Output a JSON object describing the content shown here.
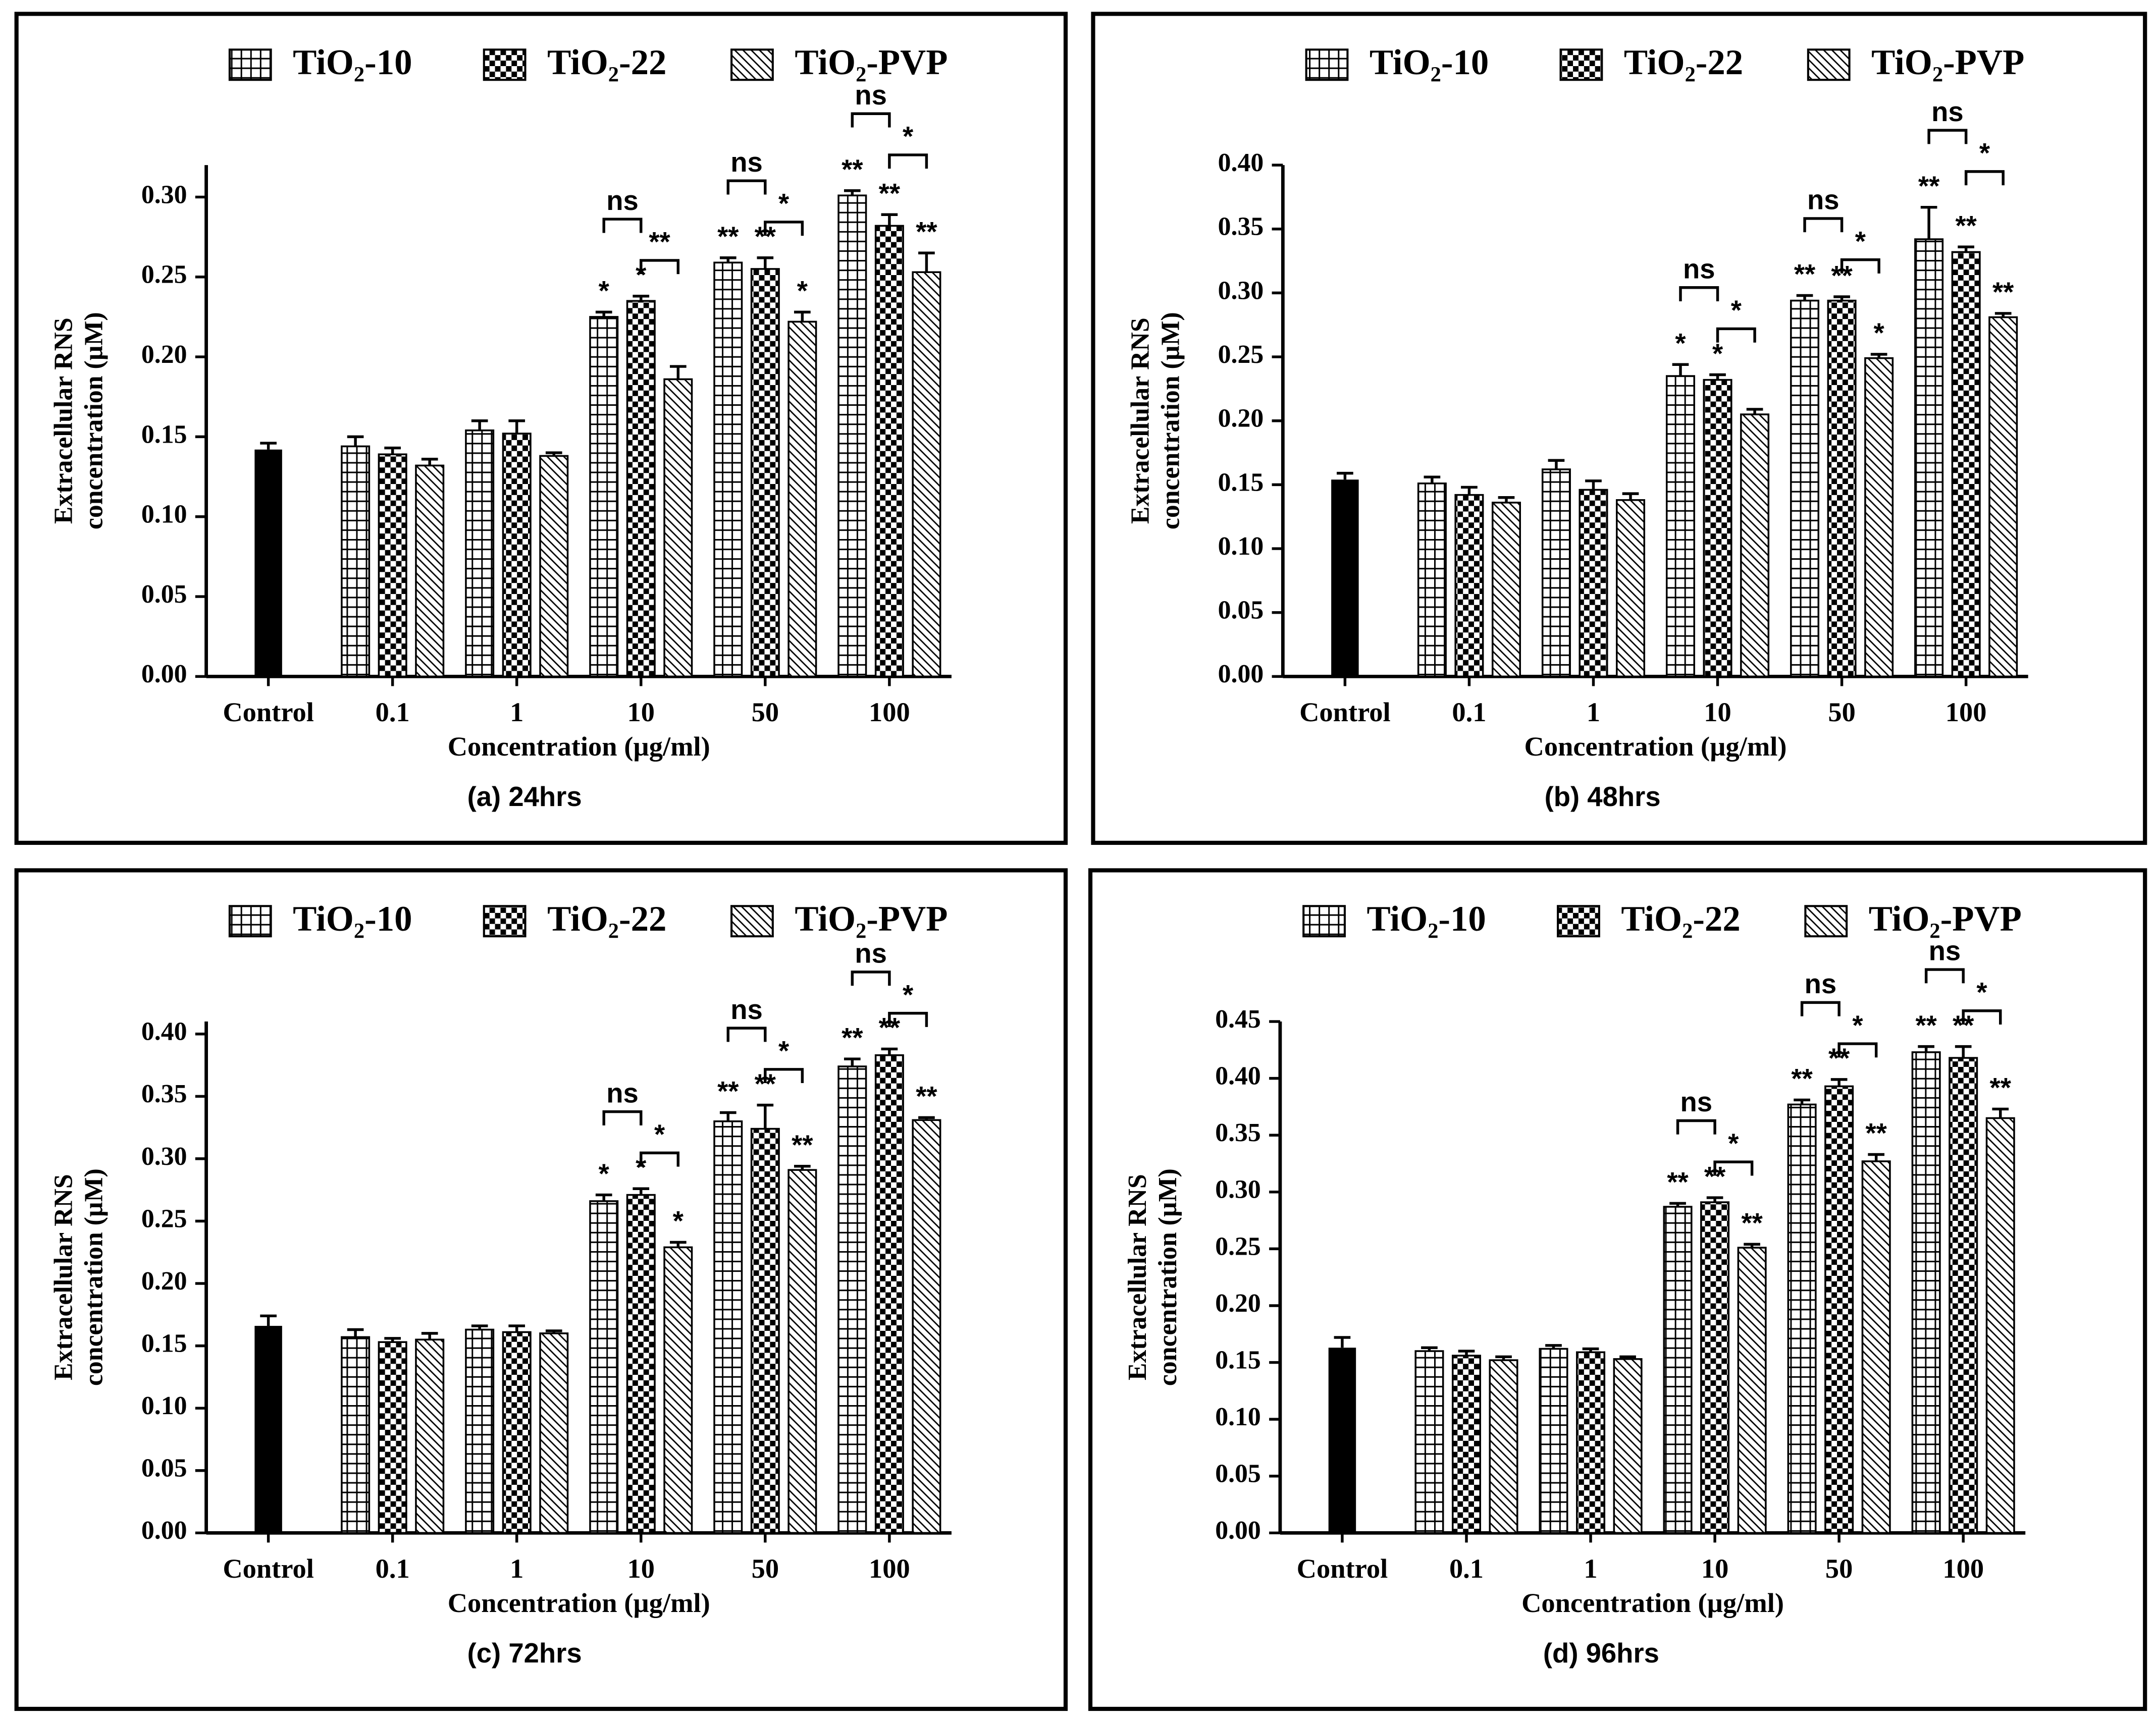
{
  "chart_data": [
    {
      "type": "bar",
      "caption": "(a) 24hrs",
      "xlabel": "Concentration (µg/ml)",
      "ylabel": [
        "Extracellular RNS",
        "concentration (µM)"
      ],
      "categories": [
        "Control",
        "0.1",
        "1",
        "10",
        "50",
        "100"
      ],
      "control": {
        "value": 0.142,
        "error": 0.004,
        "color": "#000000"
      },
      "ylim": [
        0,
        0.32
      ],
      "yticks": [
        {
          "value": 0,
          "label": "0.00"
        },
        {
          "value": 0.05,
          "label": "0.05"
        },
        {
          "value": 0.1,
          "label": "0.10"
        },
        {
          "value": 0.15,
          "label": "0.15"
        },
        {
          "value": 0.2,
          "label": "0.20"
        },
        {
          "value": 0.25,
          "label": "0.25"
        },
        {
          "value": 0.3,
          "label": "0.30"
        }
      ],
      "series": [
        {
          "name": "TiO₂-10",
          "color": "#000000",
          "pattern": "grid",
          "values": [
            null,
            0.144,
            0.154,
            0.225,
            0.259,
            0.301
          ],
          "errors": [
            null,
            0.006,
            0.006,
            0.003,
            0.003,
            0.003
          ],
          "annotations": [
            null,
            null,
            null,
            "*",
            "**",
            "**"
          ]
        },
        {
          "name": "TiO₂-22",
          "color": "#000000",
          "pattern": "checker",
          "values": [
            null,
            0.139,
            0.152,
            0.235,
            0.255,
            0.282
          ],
          "errors": [
            null,
            0.004,
            0.008,
            0.003,
            0.007,
            0.007
          ],
          "annotations": [
            null,
            null,
            null,
            "*",
            "**",
            "**"
          ]
        },
        {
          "name": "TiO₂-PVP",
          "color": "#000000",
          "pattern": "diagonal",
          "values": [
            null,
            0.132,
            0.138,
            0.186,
            0.222,
            0.253
          ],
          "errors": [
            null,
            0.004,
            0.002,
            0.008,
            0.006,
            0.012
          ],
          "annotations": [
            null,
            null,
            null,
            null,
            "*",
            "**"
          ]
        }
      ],
      "brackets": [
        {
          "category": "10",
          "pair": [
            "TiO₂-10",
            "TiO₂-22"
          ],
          "label": "ns"
        },
        {
          "category": "10",
          "pair": [
            "TiO₂-22",
            "TiO₂-PVP"
          ],
          "label": "**"
        },
        {
          "category": "50",
          "pair": [
            "TiO₂-10",
            "TiO₂-22"
          ],
          "label": "ns"
        },
        {
          "category": "50",
          "pair": [
            "TiO₂-22",
            "TiO₂-PVP"
          ],
          "label": "*"
        },
        {
          "category": "100",
          "pair": [
            "TiO₂-10",
            "TiO₂-22"
          ],
          "label": "ns"
        },
        {
          "category": "100",
          "pair": [
            "TiO₂-22",
            "TiO₂-PVP"
          ],
          "label": "*"
        }
      ]
    },
    {
      "type": "bar",
      "caption": "(b) 48hrs",
      "xlabel": "Concentration (µg/ml)",
      "ylabel": [
        "Extracellular RNS",
        "concentration (µM)"
      ],
      "categories": [
        "Control",
        "0.1",
        "1",
        "10",
        "50",
        "100"
      ],
      "control": {
        "value": 0.154,
        "error": 0.005,
        "color": "#000000"
      },
      "ylim": [
        0,
        0.4
      ],
      "yticks": [
        {
          "value": 0,
          "label": "0.00"
        },
        {
          "value": 0.05,
          "label": "0.05"
        },
        {
          "value": 0.1,
          "label": "0.10"
        },
        {
          "value": 0.15,
          "label": "0.15"
        },
        {
          "value": 0.2,
          "label": "0.20"
        },
        {
          "value": 0.25,
          "label": "0.25"
        },
        {
          "value": 0.3,
          "label": "0.30"
        },
        {
          "value": 0.35,
          "label": "0.35"
        },
        {
          "value": 0.4,
          "label": "0.40"
        }
      ],
      "series": [
        {
          "name": "TiO₂-10",
          "color": "#000000",
          "pattern": "grid",
          "values": [
            null,
            0.151,
            0.162,
            0.235,
            0.294,
            0.342
          ],
          "errors": [
            null,
            0.005,
            0.007,
            0.009,
            0.004,
            0.025
          ],
          "annotations": [
            null,
            null,
            null,
            "*",
            "**",
            "**"
          ]
        },
        {
          "name": "TiO₂-22",
          "color": "#000000",
          "pattern": "checker",
          "values": [
            null,
            0.142,
            0.146,
            0.232,
            0.294,
            0.332
          ],
          "errors": [
            null,
            0.006,
            0.007,
            0.004,
            0.003,
            0.004
          ],
          "annotations": [
            null,
            null,
            null,
            "*",
            "**",
            "**"
          ]
        },
        {
          "name": "TiO₂-PVP",
          "color": "#000000",
          "pattern": "diagonal",
          "values": [
            null,
            0.136,
            0.138,
            0.205,
            0.249,
            0.281
          ],
          "errors": [
            null,
            0.004,
            0.005,
            0.004,
            0.003,
            0.003
          ],
          "annotations": [
            null,
            null,
            null,
            null,
            "*",
            "**"
          ]
        }
      ],
      "brackets": [
        {
          "category": "10",
          "pair": [
            "TiO₂-10",
            "TiO₂-22"
          ],
          "label": "ns"
        },
        {
          "category": "10",
          "pair": [
            "TiO₂-22",
            "TiO₂-PVP"
          ],
          "label": "*"
        },
        {
          "category": "50",
          "pair": [
            "TiO₂-10",
            "TiO₂-22"
          ],
          "label": "ns"
        },
        {
          "category": "50",
          "pair": [
            "TiO₂-22",
            "TiO₂-PVP"
          ],
          "label": "*"
        },
        {
          "category": "100",
          "pair": [
            "TiO₂-10",
            "TiO₂-22"
          ],
          "label": "ns"
        },
        {
          "category": "100",
          "pair": [
            "TiO₂-22",
            "TiO₂-PVP"
          ],
          "label": "*"
        }
      ]
    },
    {
      "type": "bar",
      "caption": "(c) 72hrs",
      "xlabel": "Concentration (µg/ml)",
      "ylabel": [
        "Extracellular RNS",
        "concentration (µM)"
      ],
      "categories": [
        "Control",
        "0.1",
        "1",
        "10",
        "50",
        "100"
      ],
      "control": {
        "value": 0.166,
        "error": 0.008,
        "color": "#000000"
      },
      "ylim": [
        0,
        0.41
      ],
      "yticks": [
        {
          "value": 0,
          "label": "0.00"
        },
        {
          "value": 0.05,
          "label": "0.05"
        },
        {
          "value": 0.1,
          "label": "0.10"
        },
        {
          "value": 0.15,
          "label": "0.15"
        },
        {
          "value": 0.2,
          "label": "0.20"
        },
        {
          "value": 0.25,
          "label": "0.25"
        },
        {
          "value": 0.3,
          "label": "0.30"
        },
        {
          "value": 0.35,
          "label": "0.35"
        },
        {
          "value": 0.4,
          "label": "0.40"
        }
      ],
      "series": [
        {
          "name": "TiO₂-10",
          "color": "#000000",
          "pattern": "grid",
          "values": [
            null,
            0.157,
            0.163,
            0.266,
            0.33,
            0.374
          ],
          "errors": [
            null,
            0.006,
            0.003,
            0.005,
            0.007,
            0.006
          ],
          "annotations": [
            null,
            null,
            null,
            "*",
            "**",
            "**"
          ]
        },
        {
          "name": "TiO₂-22",
          "color": "#000000",
          "pattern": "checker",
          "values": [
            null,
            0.153,
            0.161,
            0.271,
            0.324,
            0.383
          ],
          "errors": [
            null,
            0.003,
            0.005,
            0.005,
            0.019,
            0.005
          ],
          "annotations": [
            null,
            null,
            null,
            "*",
            "**",
            "**"
          ]
        },
        {
          "name": "TiO₂-PVP",
          "color": "#000000",
          "pattern": "diagonal",
          "values": [
            null,
            0.155,
            0.16,
            0.229,
            0.291,
            0.331
          ],
          "errors": [
            null,
            0.005,
            0.002,
            0.004,
            0.003,
            0.002
          ],
          "annotations": [
            null,
            null,
            null,
            "*",
            "**",
            "**"
          ]
        }
      ],
      "brackets": [
        {
          "category": "10",
          "pair": [
            "TiO₂-10",
            "TiO₂-22"
          ],
          "label": "ns"
        },
        {
          "category": "10",
          "pair": [
            "TiO₂-22",
            "TiO₂-PVP"
          ],
          "label": "*"
        },
        {
          "category": "50",
          "pair": [
            "TiO₂-10",
            "TiO₂-22"
          ],
          "label": "ns"
        },
        {
          "category": "50",
          "pair": [
            "TiO₂-22",
            "TiO₂-PVP"
          ],
          "label": "*"
        },
        {
          "category": "100",
          "pair": [
            "TiO₂-10",
            "TiO₂-22"
          ],
          "label": "ns"
        },
        {
          "category": "100",
          "pair": [
            "TiO₂-22",
            "TiO₂-PVP"
          ],
          "label": "*"
        }
      ]
    },
    {
      "type": "bar",
      "caption": "(d) 96hrs",
      "xlabel": "Concentration (µg/ml)",
      "ylabel": [
        "Extracellular RNS",
        "concentration (µM)"
      ],
      "categories": [
        "Control",
        "0.1",
        "1",
        "10",
        "50",
        "100"
      ],
      "control": {
        "value": 0.163,
        "error": 0.009,
        "color": "#000000"
      },
      "ylim": [
        0,
        0.45
      ],
      "yticks": [
        {
          "value": 0,
          "label": "0.00"
        },
        {
          "value": 0.05,
          "label": "0.05"
        },
        {
          "value": 0.1,
          "label": "0.10"
        },
        {
          "value": 0.15,
          "label": "0.15"
        },
        {
          "value": 0.2,
          "label": "0.20"
        },
        {
          "value": 0.25,
          "label": "0.25"
        },
        {
          "value": 0.3,
          "label": "0.30"
        },
        {
          "value": 0.35,
          "label": "0.35"
        },
        {
          "value": 0.4,
          "label": "0.40"
        },
        {
          "value": 0.45,
          "label": "0.45"
        }
      ],
      "series": [
        {
          "name": "TiO₂-10",
          "color": "#000000",
          "pattern": "grid",
          "values": [
            null,
            0.16,
            0.162,
            0.287,
            0.377,
            0.423
          ],
          "errors": [
            null,
            0.003,
            0.003,
            0.003,
            0.004,
            0.005
          ],
          "annotations": [
            null,
            null,
            null,
            "**",
            "**",
            "**"
          ]
        },
        {
          "name": "TiO₂-22",
          "color": "#000000",
          "pattern": "checker",
          "values": [
            null,
            0.156,
            0.159,
            0.291,
            0.393,
            0.418
          ],
          "errors": [
            null,
            0.004,
            0.003,
            0.004,
            0.006,
            0.01
          ],
          "annotations": [
            null,
            null,
            null,
            "**",
            "**",
            "**"
          ]
        },
        {
          "name": "TiO₂-PVP",
          "color": "#000000",
          "pattern": "diagonal",
          "values": [
            null,
            0.152,
            0.153,
            0.251,
            0.327,
            0.365
          ],
          "errors": [
            null,
            0.003,
            0.002,
            0.003,
            0.006,
            0.008
          ],
          "annotations": [
            null,
            null,
            null,
            "**",
            "**",
            "**"
          ]
        }
      ],
      "brackets": [
        {
          "category": "10",
          "pair": [
            "TiO₂-10",
            "TiO₂-22"
          ],
          "label": "ns"
        },
        {
          "category": "10",
          "pair": [
            "TiO₂-22",
            "TiO₂-PVP"
          ],
          "label": "*"
        },
        {
          "category": "50",
          "pair": [
            "TiO₂-10",
            "TiO₂-22"
          ],
          "label": "ns"
        },
        {
          "category": "50",
          "pair": [
            "TiO₂-22",
            "TiO₂-PVP"
          ],
          "label": "*"
        },
        {
          "category": "100",
          "pair": [
            "TiO₂-10",
            "TiO₂-22"
          ],
          "label": "ns"
        },
        {
          "category": "100",
          "pair": [
            "TiO₂-22",
            "TiO₂-PVP"
          ],
          "label": "*"
        }
      ]
    }
  ]
}
